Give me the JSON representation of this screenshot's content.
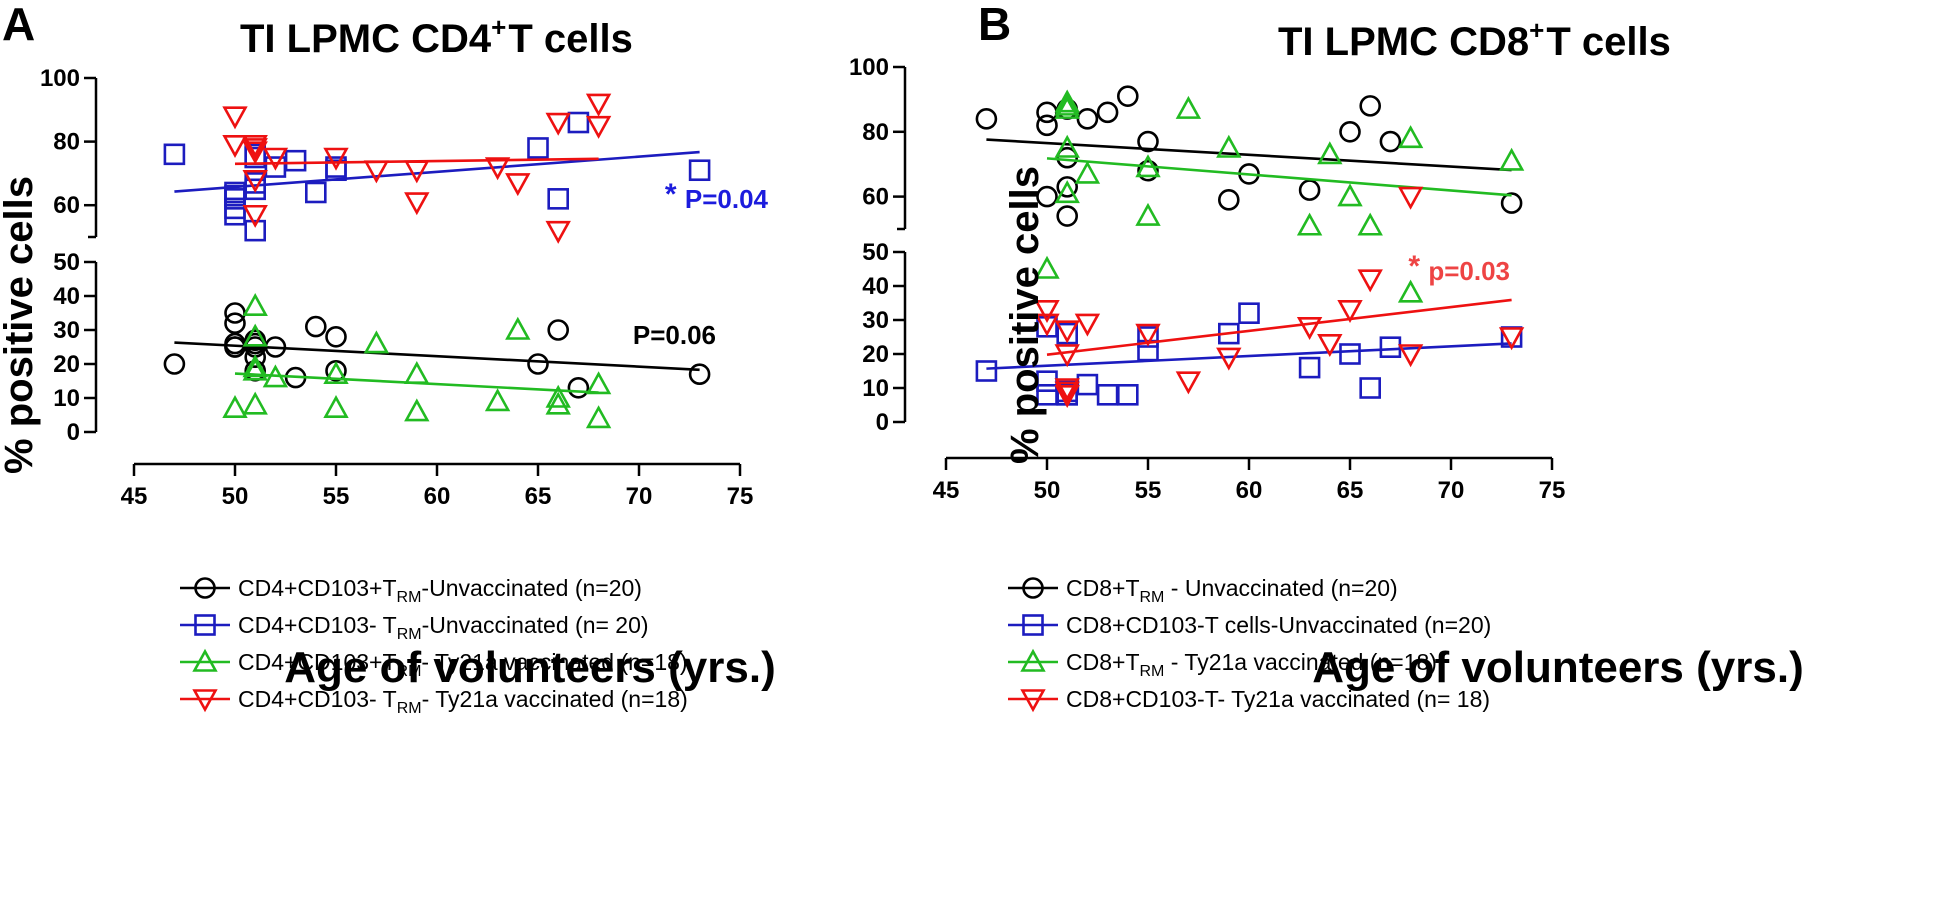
{
  "chart_data": [
    {
      "type": "scatter",
      "panel": "A",
      "title": "TI LPMC CD4",
      "title_sup": "+",
      "title_rest": "T cells",
      "xlabel": "Age of volunteers (yrs.)",
      "ylabel": "% positive cells",
      "xlim": [
        45,
        75
      ],
      "x_ticks": [
        "45",
        "50",
        "55",
        "60",
        "65",
        "70",
        "75"
      ],
      "upper_ylim": [
        50,
        100
      ],
      "upper_ticks": [
        "60",
        "80",
        "100"
      ],
      "lower_ylim": [
        0,
        50
      ],
      "lower_ticks": [
        "0",
        "10",
        "20",
        "30",
        "40",
        "50"
      ],
      "series": [
        {
          "name": "CD4+CD103+T RM-Unvaccinated (n=20)",
          "legend_pre": "CD4+CD103+T",
          "legend_sub": "RM",
          "legend_post": "-Unvaccinated (n=20)",
          "marker": "circle",
          "color": "#000000",
          "segment": "lower",
          "x": [
            47,
            50,
            50,
            50,
            50,
            51,
            51,
            51,
            51,
            51,
            52,
            53,
            54,
            55,
            55,
            65,
            66,
            67,
            73,
            50
          ],
          "y": [
            20,
            35,
            32,
            26,
            25,
            26,
            25,
            22,
            18,
            27,
            25,
            16,
            31,
            28,
            18,
            20,
            30,
            13,
            17,
            25
          ],
          "fit": {
            "x": [
              47,
              73
            ],
            "y": [
              26.3,
              18.3
            ]
          },
          "p_label": "P=0.06",
          "p_color": "#000000"
        },
        {
          "name": "CD4+CD103- T RM-Unvaccinated (n= 20)",
          "legend_pre": "CD4+CD103- T",
          "legend_sub": "RM",
          "legend_post": "-Unvaccinated (n= 20)",
          "marker": "square",
          "color": "#1c1cbf",
          "segment": "upper",
          "x": [
            47,
            50,
            50,
            50,
            50,
            51,
            51,
            51,
            51,
            52,
            53,
            54,
            55,
            55,
            65,
            66,
            67,
            73,
            51,
            50
          ],
          "y": [
            76,
            64,
            62,
            59,
            57,
            76,
            67,
            65,
            52,
            72,
            74,
            64,
            72,
            71,
            78,
            62,
            86,
            71,
            75,
            63
          ],
          "fit": {
            "x": [
              47,
              73
            ],
            "y": [
              64.3,
              76.7
            ]
          },
          "p_star": "*",
          "p_label": "P=0.04",
          "p_color": "#1c1cdd"
        },
        {
          "name": "CD4+CD103+T RM- Ty21a vaccinated (n=18)",
          "legend_pre": "CD4+CD103+T",
          "legend_sub": "RM",
          "legend_post": "- Ty21a vaccinated (n=18)",
          "marker": "triangle-up",
          "color": "#22bb22",
          "segment": "lower",
          "x": [
            50,
            51,
            51,
            51,
            51,
            52,
            55,
            55,
            57,
            59,
            59,
            63,
            64,
            66,
            66,
            68,
            68,
            51
          ],
          "y": [
            7,
            37,
            28,
            18,
            8,
            16,
            17,
            7,
            26,
            17,
            6,
            9,
            30,
            10,
            8,
            14,
            4,
            19
          ],
          "fit": {
            "x": [
              50,
              68
            ],
            "y": [
              17.2,
              11.6
            ]
          }
        },
        {
          "name": "CD4+CD103- T RM- Ty21a vaccinated (n=18)",
          "legend_pre": "CD4+CD103- T",
          "legend_sub": "RM",
          "legend_post": "- Ty21a vaccinated (n=18)",
          "marker": "triangle-down",
          "color": "#ee1111",
          "segment": "upper",
          "x": [
            50,
            50,
            51,
            51,
            51,
            51,
            52,
            55,
            57,
            59,
            59,
            63,
            64,
            66,
            66,
            68,
            68,
            51
          ],
          "y": [
            88,
            79,
            79,
            77,
            68,
            57,
            75,
            75,
            71,
            71,
            61,
            72,
            67,
            86,
            52,
            92,
            85,
            78
          ],
          "fit": {
            "x": [
              50,
              68
            ],
            "y": [
              73.0,
              74.6
            ]
          }
        }
      ]
    },
    {
      "type": "scatter",
      "panel": "B",
      "title": "TI LPMC CD8",
      "title_sup": "+",
      "title_rest": "T cells",
      "xlabel": "Age of volunteers (yrs.)",
      "ylabel": "% positive cells",
      "xlim": [
        45,
        75
      ],
      "x_ticks": [
        "45",
        "50",
        "55",
        "60",
        "65",
        "70",
        "75"
      ],
      "upper_ylim": [
        50,
        100
      ],
      "upper_ticks": [
        "60",
        "80",
        "100"
      ],
      "lower_ylim": [
        0,
        50
      ],
      "lower_ticks": [
        "0",
        "10",
        "20",
        "30",
        "40",
        "50"
      ],
      "series": [
        {
          "name": "CD8+T RM - Unvaccinated (n=20)",
          "legend_pre": "CD8+T",
          "legend_sub": "RM",
          "legend_post": " - Unvaccinated (n=20)",
          "marker": "circle",
          "color": "#000000",
          "segment": "upper",
          "x": [
            47,
            50,
            50,
            50,
            51,
            51,
            51,
            51,
            52,
            53,
            54,
            55,
            55,
            59,
            60,
            63,
            65,
            66,
            67,
            73
          ],
          "y": [
            84,
            86,
            82,
            60,
            87,
            72,
            63,
            54,
            84,
            86,
            91,
            77,
            68,
            59,
            67,
            62,
            80,
            88,
            77,
            58
          ],
          "fit": {
            "x": [
              47,
              73
            ],
            "y": [
              77.6,
              68.2
            ]
          }
        },
        {
          "name": "CD8+CD103-T cells-Unvaccinated (n=20)",
          "legend_pre": "CD8+CD103-T cells-Unvaccinated (n=20)",
          "legend_sub": "",
          "legend_post": "",
          "marker": "square",
          "color": "#1c1cbf",
          "segment": "lower",
          "x": [
            47,
            50,
            50,
            50,
            51,
            51,
            51,
            52,
            53,
            54,
            55,
            55,
            59,
            60,
            63,
            65,
            66,
            67,
            73,
            51
          ],
          "y": [
            15,
            28,
            12,
            8,
            26,
            9,
            8,
            11,
            8,
            8,
            25,
            21,
            26,
            32,
            16,
            20,
            10,
            22,
            25,
            8
          ],
          "fit": {
            "x": [
              47,
              73
            ],
            "y": [
              15.7,
              23.1
            ]
          }
        },
        {
          "name": "CD8+T RM - Ty21a vaccinated (n=18)",
          "legend_pre": "CD8+T",
          "legend_sub": "RM",
          "legend_post": " - Ty21a vaccinated (n=18)",
          "marker": "triangle-up",
          "color": "#22bb22",
          "segment": "mixed",
          "x": [
            50,
            51,
            51,
            51,
            51,
            52,
            55,
            55,
            57,
            59,
            63,
            64,
            65,
            66,
            68,
            68,
            73,
            51
          ],
          "y": [
            45,
            89,
            87,
            75,
            61,
            67,
            69,
            54,
            87,
            75,
            51,
            73,
            60,
            51,
            38,
            78,
            71,
            88
          ],
          "fit": {
            "x": [
              50,
              73
            ],
            "y": [
              71.8,
              60.4
            ]
          }
        },
        {
          "name": "CD8+CD103-T- Ty21a vaccinated (n= 18)",
          "legend_pre": "CD8+CD103-T- Ty21a vaccinated (n= 18)",
          "legend_sub": "",
          "legend_post": "",
          "marker": "triangle-down",
          "color": "#ee1111",
          "segment": "mixed",
          "x": [
            50,
            51,
            51,
            51,
            51,
            52,
            55,
            57,
            59,
            63,
            64,
            65,
            66,
            68,
            68,
            73,
            50,
            51
          ],
          "y": [
            33,
            27,
            20,
            10,
            8,
            29,
            26,
            12,
            19,
            28,
            23,
            33,
            42,
            60,
            20,
            25,
            29,
            9
          ],
          "fit": {
            "x": [
              50,
              73
            ],
            "y": [
              19.8,
              35.9
            ]
          },
          "p_star": "*",
          "p_label": "p=0.03",
          "p_color": "#ee4444"
        }
      ]
    }
  ]
}
